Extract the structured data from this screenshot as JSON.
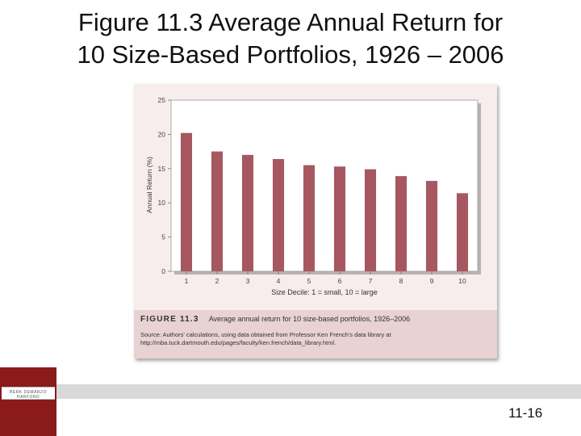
{
  "slide": {
    "title_line1": "Figure 11.3 Average Annual Return for",
    "title_line2": "10 Size-Based Portfolios, 1926 – 2006",
    "slide_number": "11-16",
    "logo_text": "BERK DEMARZO HARFORD"
  },
  "caption": {
    "label": "FIGURE 11.3",
    "text": "Average annual return for 10 size-based portfolios, 1926–2006",
    "source": "Source: Authors' calculations, using data obtained from Professor Ken French's data library at http://mba.tuck.dartmouth.edu/pages/faculty/ken.french/data_library.html."
  },
  "colors": {
    "bar": "#a65760",
    "plot_bg": "#ffffff",
    "figure_bg": "#f7eded",
    "caption_bg": "#e8d2d2",
    "logo_bg": "#8b1a1a"
  },
  "chart_data": {
    "type": "bar",
    "title": "",
    "xlabel": "Size Decile: 1 = small, 10 = large",
    "ylabel": "Annual Return (%)",
    "categories": [
      "1",
      "2",
      "3",
      "4",
      "5",
      "6",
      "7",
      "8",
      "9",
      "10"
    ],
    "values": [
      20.2,
      17.5,
      17.0,
      16.4,
      15.5,
      15.3,
      14.9,
      13.9,
      13.2,
      11.4
    ],
    "ylim": [
      0,
      25
    ],
    "yticks": [
      0,
      5,
      10,
      15,
      20,
      25
    ],
    "grid": false,
    "legend": "none"
  }
}
